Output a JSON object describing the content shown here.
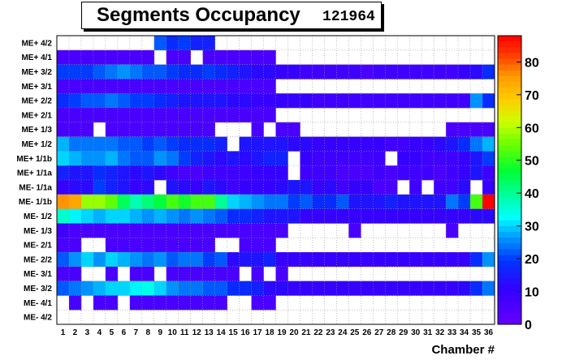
{
  "chart_data": {
    "type": "heatmap",
    "title": "Segments Occupancy",
    "run_number": "121964",
    "xlabel": "Chamber #",
    "ylabel": "",
    "x_categories": [
      "1",
      "2",
      "3",
      "4",
      "5",
      "6",
      "7",
      "8",
      "9",
      "10",
      "11",
      "12",
      "13",
      "14",
      "15",
      "16",
      "17",
      "18",
      "19",
      "20",
      "21",
      "22",
      "23",
      "24",
      "25",
      "26",
      "27",
      "28",
      "29",
      "30",
      "31",
      "32",
      "33",
      "34",
      "35",
      "36"
    ],
    "y_categories": [
      "ME+ 4/2",
      "ME+ 4/1",
      "ME+ 3/2",
      "ME+ 3/1",
      "ME+ 2/2",
      "ME+ 2/1",
      "ME+ 1/3",
      "ME+ 1/2",
      "ME+ 1/1b",
      "ME+ 1/1a",
      "ME- 1/1a",
      "ME- 1/1b",
      "ME- 1/2",
      "ME- 1/3",
      "ME- 2/1",
      "ME- 2/2",
      "ME- 3/1",
      "ME- 3/2",
      "ME- 4/1",
      "ME- 4/2"
    ],
    "zlim": [
      0,
      88
    ],
    "colorbar_ticks": [
      "0",
      "10",
      "20",
      "30",
      "40",
      "50",
      "60",
      "70",
      "80"
    ],
    "grid": true,
    "colorbar_position": "right",
    "rows": [
      [
        0,
        0,
        0,
        0,
        0,
        0,
        0,
        0,
        22,
        18,
        20,
        16,
        16,
        0,
        0,
        0,
        0,
        0,
        0,
        0,
        0,
        0,
        0,
        0,
        0,
        0,
        0,
        0,
        0,
        0,
        0,
        0,
        0,
        0,
        0,
        0
      ],
      [
        6,
        6,
        6,
        6,
        6,
        6,
        6,
        6,
        0,
        6,
        6,
        0,
        6,
        6,
        6,
        6,
        6,
        6,
        0,
        0,
        0,
        0,
        0,
        0,
        0,
        0,
        0,
        0,
        0,
        0,
        0,
        0,
        0,
        0,
        0,
        0
      ],
      [
        20,
        20,
        20,
        22,
        24,
        26,
        24,
        22,
        22,
        20,
        18,
        18,
        20,
        18,
        16,
        14,
        12,
        12,
        10,
        10,
        8,
        8,
        8,
        8,
        8,
        6,
        8,
        8,
        8,
        8,
        8,
        8,
        8,
        10,
        12,
        18
      ],
      [
        6,
        6,
        6,
        6,
        6,
        6,
        6,
        6,
        6,
        6,
        6,
        6,
        6,
        6,
        6,
        6,
        6,
        6,
        0,
        0,
        0,
        0,
        0,
        0,
        0,
        0,
        0,
        0,
        0,
        0,
        0,
        0,
        0,
        0,
        0,
        0
      ],
      [
        18,
        20,
        22,
        22,
        24,
        22,
        20,
        20,
        18,
        16,
        14,
        14,
        14,
        14,
        12,
        12,
        10,
        10,
        10,
        10,
        10,
        8,
        8,
        8,
        8,
        8,
        8,
        8,
        8,
        8,
        8,
        8,
        8,
        8,
        26,
        18
      ],
      [
        6,
        6,
        6,
        6,
        6,
        6,
        6,
        6,
        6,
        6,
        6,
        6,
        6,
        6,
        6,
        6,
        6,
        6,
        0,
        0,
        0,
        0,
        0,
        0,
        0,
        0,
        0,
        0,
        0,
        0,
        0,
        0,
        0,
        0,
        0,
        0
      ],
      [
        6,
        6,
        6,
        0,
        6,
        6,
        6,
        6,
        6,
        6,
        6,
        6,
        6,
        0,
        0,
        0,
        6,
        0,
        6,
        6,
        0,
        0,
        0,
        0,
        0,
        0,
        0,
        0,
        0,
        0,
        0,
        0,
        6,
        6,
        6,
        6
      ],
      [
        28,
        24,
        24,
        24,
        24,
        22,
        22,
        20,
        22,
        20,
        18,
        18,
        18,
        16,
        0,
        14,
        14,
        14,
        14,
        12,
        12,
        10,
        10,
        10,
        10,
        10,
        10,
        8,
        8,
        10,
        10,
        12,
        14,
        18,
        24,
        28
      ],
      [
        30,
        28,
        26,
        26,
        28,
        24,
        22,
        22,
        26,
        24,
        20,
        16,
        14,
        12,
        14,
        12,
        14,
        16,
        16,
        0,
        10,
        8,
        8,
        8,
        8,
        8,
        8,
        0,
        10,
        10,
        8,
        8,
        8,
        10,
        14,
        20
      ],
      [
        16,
        14,
        14,
        18,
        16,
        14,
        12,
        14,
        12,
        8,
        6,
        6,
        8,
        8,
        8,
        8,
        10,
        10,
        10,
        0,
        8,
        8,
        8,
        6,
        6,
        6,
        8,
        6,
        8,
        8,
        8,
        6,
        8,
        10,
        14,
        8
      ],
      [
        10,
        12,
        12,
        20,
        16,
        14,
        10,
        12,
        0,
        14,
        12,
        10,
        14,
        12,
        8,
        10,
        10,
        10,
        12,
        14,
        14,
        10,
        12,
        8,
        10,
        10,
        6,
        6,
        0,
        8,
        0,
        8,
        8,
        12,
        0,
        10
      ],
      [
        76,
        74,
        58,
        58,
        54,
        44,
        38,
        42,
        46,
        52,
        48,
        52,
        52,
        40,
        30,
        28,
        26,
        24,
        24,
        20,
        22,
        18,
        18,
        22,
        14,
        14,
        14,
        16,
        14,
        14,
        14,
        14,
        24,
        20,
        52,
        88
      ],
      [
        36,
        32,
        30,
        28,
        30,
        30,
        28,
        26,
        28,
        26,
        24,
        26,
        24,
        22,
        18,
        18,
        16,
        14,
        14,
        14,
        10,
        10,
        10,
        10,
        10,
        10,
        10,
        10,
        10,
        10,
        10,
        10,
        10,
        10,
        12,
        12
      ],
      [
        8,
        6,
        6,
        6,
        6,
        6,
        6,
        6,
        6,
        6,
        6,
        6,
        6,
        6,
        6,
        6,
        6,
        6,
        6,
        0,
        0,
        0,
        0,
        0,
        6,
        0,
        0,
        0,
        0,
        0,
        0,
        0,
        6,
        0,
        0,
        0
      ],
      [
        6,
        6,
        0,
        0,
        6,
        6,
        6,
        6,
        6,
        6,
        6,
        6,
        6,
        0,
        0,
        6,
        6,
        6,
        0,
        0,
        0,
        0,
        0,
        0,
        0,
        0,
        0,
        0,
        0,
        0,
        0,
        0,
        0,
        0,
        0,
        0
      ],
      [
        22,
        26,
        30,
        26,
        30,
        28,
        26,
        24,
        26,
        22,
        24,
        24,
        20,
        22,
        12,
        14,
        14,
        16,
        10,
        10,
        10,
        10,
        10,
        10,
        10,
        10,
        10,
        10,
        10,
        10,
        10,
        10,
        10,
        10,
        18,
        26
      ],
      [
        6,
        6,
        0,
        0,
        6,
        0,
        6,
        6,
        0,
        6,
        6,
        6,
        6,
        6,
        6,
        0,
        6,
        0,
        6,
        0,
        0,
        0,
        0,
        0,
        0,
        0,
        0,
        0,
        0,
        0,
        0,
        0,
        0,
        0,
        0,
        0
      ],
      [
        22,
        24,
        26,
        28,
        30,
        30,
        32,
        34,
        30,
        26,
        24,
        24,
        22,
        22,
        18,
        18,
        16,
        12,
        12,
        10,
        10,
        10,
        10,
        10,
        10,
        10,
        10,
        10,
        10,
        10,
        10,
        10,
        10,
        12,
        18,
        24
      ],
      [
        0,
        6,
        0,
        6,
        6,
        0,
        6,
        6,
        6,
        6,
        6,
        6,
        6,
        6,
        0,
        0,
        6,
        6,
        0,
        0,
        0,
        0,
        0,
        0,
        0,
        0,
        0,
        0,
        0,
        0,
        0,
        0,
        0,
        0,
        0,
        0
      ],
      [
        0,
        0,
        0,
        0,
        0,
        0,
        0,
        0,
        0,
        0,
        0,
        0,
        0,
        0,
        0,
        0,
        0,
        0,
        0,
        0,
        0,
        0,
        0,
        0,
        0,
        0,
        0,
        0,
        0,
        0,
        0,
        0,
        0,
        0,
        0,
        0
      ]
    ]
  }
}
